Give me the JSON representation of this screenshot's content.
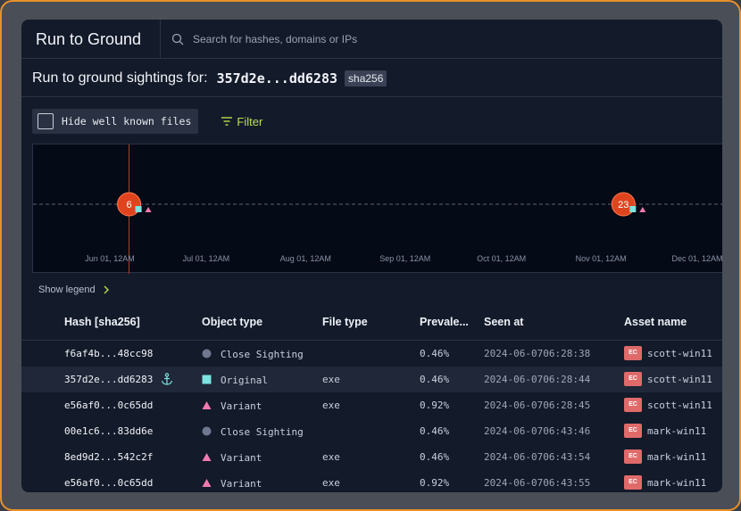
{
  "app": {
    "title": "Run to Ground"
  },
  "search": {
    "placeholder": "Search for hashes, domains or IPs"
  },
  "heading": {
    "label": "Run to ground sightings for:",
    "hash": "357d2e...dd6283",
    "hash_type": "sha256"
  },
  "toolbar": {
    "hide_known_label": "Hide well known files",
    "hide_known_checked": false,
    "filter_label": "Filter"
  },
  "chart_data": {
    "type": "scatter",
    "x_ticks": [
      "Jun 01, 12AM",
      "Jul 01, 12AM",
      "Aug 01, 12AM",
      "Sep 01, 12AM",
      "Oct 01, 12AM",
      "Nov 01, 12AM",
      "Dec 01, 12AM"
    ],
    "clusters": [
      {
        "date": "2024-06-07",
        "count": "6"
      },
      {
        "date": "2024-11-08",
        "count": "23"
      }
    ],
    "marker_date": "2024-06-07",
    "colors": {
      "cluster": "#e0441f",
      "original": "#7de3e0",
      "variant": "#f07ab0",
      "marker_line": "#c0392b"
    }
  },
  "legend": {
    "toggle_label": "Show legend"
  },
  "table": {
    "columns": [
      "Hash [sha256]",
      "Object type",
      "File type",
      "Prevale...",
      "Seen at",
      "Asset name"
    ],
    "rows": [
      {
        "hash": "f6af4b...48cc98",
        "object_type": "Close Sighting",
        "icon": "circle-icon",
        "file_type": "",
        "prevalence": "0.46%",
        "seen_at": "2024-06-07",
        "seen_time": "06:28:38",
        "asset_badge": "EC",
        "asset": "scott-win11",
        "anchor": false
      },
      {
        "hash": "357d2e...dd6283",
        "object_type": "Original",
        "icon": "square-icon",
        "file_type": "exe",
        "prevalence": "0.46%",
        "seen_at": "2024-06-07",
        "seen_time": "06:28:44",
        "asset_badge": "EC",
        "asset": "scott-win11",
        "anchor": true
      },
      {
        "hash": "e56af0...0c65dd",
        "object_type": "Variant",
        "icon": "triangle-icon",
        "file_type": "exe",
        "prevalence": "0.92%",
        "seen_at": "2024-06-07",
        "seen_time": "06:28:45",
        "asset_badge": "EC",
        "asset": "scott-win11",
        "anchor": false
      },
      {
        "hash": "00e1c6...83dd6e",
        "object_type": "Close Sighting",
        "icon": "circle-icon",
        "file_type": "",
        "prevalence": "0.46%",
        "seen_at": "2024-06-07",
        "seen_time": "06:43:46",
        "asset_badge": "EC",
        "asset": "mark-win11",
        "anchor": false
      },
      {
        "hash": "8ed9d2...542c2f",
        "object_type": "Variant",
        "icon": "triangle-icon",
        "file_type": "exe",
        "prevalence": "0.46%",
        "seen_at": "2024-06-07",
        "seen_time": "06:43:54",
        "asset_badge": "EC",
        "asset": "mark-win11",
        "anchor": false
      },
      {
        "hash": "e56af0...0c65dd",
        "object_type": "Variant",
        "icon": "triangle-icon",
        "file_type": "exe",
        "prevalence": "0.92%",
        "seen_at": "2024-06-07",
        "seen_time": "06:43:55",
        "asset_badge": "EC",
        "asset": "mark-win11",
        "anchor": false
      }
    ],
    "selected_row": 1
  },
  "colors": {
    "accent": "#b8e04a",
    "frame": "#e8902a",
    "badge": "#e06a6a"
  }
}
